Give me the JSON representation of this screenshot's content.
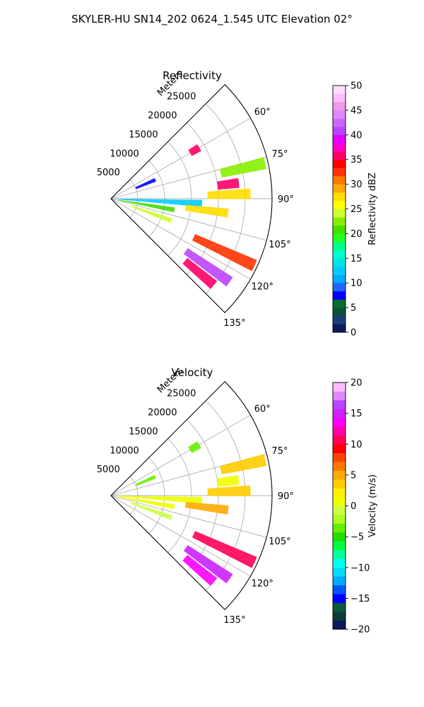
{
  "figure": {
    "suptitle": "SKYLER-HU  SN14_202  0624_1.545 UTC Elevation 02°"
  },
  "chart_data": [
    {
      "type": "heatmap",
      "subtype": "polar-sector (PPI radar)",
      "title": "Reflectivity",
      "radial_label": "Meters",
      "radial_ticks": [
        "5000",
        "10000",
        "15000",
        "20000",
        "25000"
      ],
      "range_max": 30000,
      "azimuth_ticks": [
        "60°",
        "75°",
        "90°",
        "105°",
        "120°",
        "135°"
      ],
      "azimuth_range": [
        45,
        135
      ],
      "grid": true,
      "colorbar": {
        "label": "Reflectivity dBZ",
        "min": 0,
        "max": 50,
        "ticks": [
          "0",
          "5",
          "10",
          "15",
          "20",
          "25",
          "30",
          "35",
          "40",
          "45",
          "50"
        ],
        "colors": [
          "#0a1a5c",
          "#1a3d7a",
          "#0e4f3a",
          "#0a6b2e",
          "#0000ff",
          "#2266ff",
          "#00aaff",
          "#00ccff",
          "#00e6e6",
          "#00ffcc",
          "#00ff88",
          "#22ff22",
          "#44dd00",
          "#88ee00",
          "#ccff33",
          "#ffff00",
          "#ffdd00",
          "#ffaa00",
          "#ff7700",
          "#ff3300",
          "#ff0000",
          "#ff0066",
          "#ff00cc",
          "#dd00ff",
          "#bb44ff",
          "#cc66ff",
          "#dd88ff",
          "#ee99ee",
          "#ffbbff",
          "#ffddff"
        ]
      },
      "echoes": [
        {
          "az": 60,
          "r0": 17000,
          "r1": 19000,
          "dBZ": 35
        },
        {
          "az": 77,
          "r0": 21000,
          "r1": 29500,
          "dBZ": 22
        },
        {
          "az": 83,
          "r0": 20000,
          "r1": 24000,
          "dBZ": 36
        },
        {
          "az": 88,
          "r0": 18000,
          "r1": 26000,
          "dBZ": 27
        },
        {
          "az": 93,
          "r0": 1000,
          "r1": 17000,
          "dBZ": 12
        },
        {
          "az": 100,
          "r0": 1500,
          "r1": 12000,
          "dBZ": 20
        },
        {
          "az": 97,
          "r0": 14000,
          "r1": 22000,
          "dBZ": 28
        },
        {
          "az": 110,
          "r0": 4000,
          "r1": 12000,
          "dBZ": 24
        },
        {
          "az": 115,
          "r0": 17000,
          "r1": 29500,
          "dBZ": 33
        },
        {
          "az": 125,
          "r0": 17000,
          "r1": 27000,
          "dBZ": 40
        },
        {
          "az": 130,
          "r0": 18000,
          "r1": 25000,
          "dBZ": 36
        },
        {
          "az": 67,
          "r0": 5000,
          "r1": 9000,
          "dBZ": 8
        }
      ]
    },
    {
      "type": "heatmap",
      "subtype": "polar-sector (PPI radar)",
      "title": "Velocity",
      "radial_label": "Meters",
      "radial_ticks": [
        "5000",
        "10000",
        "15000",
        "20000",
        "25000"
      ],
      "range_max": 30000,
      "azimuth_ticks": [
        "60°",
        "75°",
        "90°",
        "105°",
        "120°",
        "135°"
      ],
      "azimuth_range": [
        45,
        135
      ],
      "grid": true,
      "colorbar": {
        "label": "Velocity (m/s)",
        "min": -20,
        "max": 20,
        "ticks": [
          "−20",
          "−15",
          "−10",
          "−5",
          "0",
          "5",
          "10",
          "15",
          "20"
        ],
        "colors": [
          "#0a1a5c",
          "#0e3a3a",
          "#0a5a3a",
          "#0000ff",
          "#0055ff",
          "#00aaff",
          "#00ddff",
          "#00ffee",
          "#00ff99",
          "#00ff44",
          "#22dd00",
          "#66ee00",
          "#aaff22",
          "#ccff44",
          "#eeff00",
          "#ffee00",
          "#ffcc00",
          "#ffaa00",
          "#ff7700",
          "#ff4400",
          "#ff0000",
          "#ff0055",
          "#ff00aa",
          "#ff00ff",
          "#cc22ff",
          "#bb44ff",
          "#dd88ff",
          "#ffbbff"
        ]
      },
      "echoes": [
        {
          "az": 60,
          "r0": 17000,
          "r1": 19000,
          "vel": -3
        },
        {
          "az": 77,
          "r0": 21000,
          "r1": 29500,
          "vel": 4
        },
        {
          "az": 83,
          "r0": 20000,
          "r1": 24000,
          "vel": 1
        },
        {
          "az": 88,
          "r0": 18000,
          "r1": 26000,
          "vel": 3
        },
        {
          "az": 93,
          "r0": 1000,
          "r1": 17000,
          "vel": 1
        },
        {
          "az": 100,
          "r0": 1500,
          "r1": 12000,
          "vel": 0
        },
        {
          "az": 97,
          "r0": 14000,
          "r1": 22000,
          "vel": 5
        },
        {
          "az": 110,
          "r0": 4000,
          "r1": 12000,
          "vel": -1
        },
        {
          "az": 115,
          "r0": 17000,
          "r1": 29500,
          "vel": 10
        },
        {
          "az": 125,
          "r0": 17000,
          "r1": 27000,
          "vel": 15
        },
        {
          "az": 130,
          "r0": 18000,
          "r1": 25000,
          "vel": 14
        },
        {
          "az": 67,
          "r0": 5000,
          "r1": 9000,
          "vel": -4
        }
      ]
    }
  ]
}
